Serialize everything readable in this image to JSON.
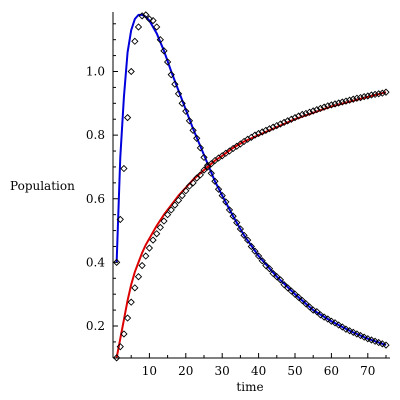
{
  "chart_data": {
    "type": "line",
    "xlabel": "time",
    "ylabel": "Population",
    "xlim": [
      0,
      75
    ],
    "ylim": [
      0.1,
      1.2
    ],
    "xticks": [
      10,
      20,
      30,
      40,
      50,
      60,
      70
    ],
    "yticks": [
      0.2,
      0.4,
      0.6,
      0.8,
      1.0
    ],
    "ytick_labels": [
      "0.2",
      "0.4",
      "0.6",
      "0.8",
      "1.0"
    ],
    "grid": false,
    "series": [
      {
        "color": "#0000dd",
        "line_x": [
          1,
          2,
          3,
          4,
          5,
          6,
          7,
          8,
          9,
          10,
          12,
          14,
          16,
          18,
          20,
          22,
          24,
          26,
          28,
          30,
          33,
          36,
          40,
          45,
          50,
          55,
          60,
          65,
          70,
          75
        ],
        "line_y": [
          0.4,
          0.73,
          0.92,
          1.06,
          1.13,
          1.165,
          1.178,
          1.178,
          1.172,
          1.16,
          1.12,
          1.065,
          1.0,
          0.94,
          0.88,
          0.82,
          0.765,
          0.71,
          0.655,
          0.61,
          0.545,
          0.485,
          0.42,
          0.355,
          0.3,
          0.25,
          0.215,
          0.185,
          0.16,
          0.14
        ],
        "markers_x": [
          1,
          2,
          3,
          4,
          5,
          6,
          7,
          8,
          9,
          10,
          11,
          12,
          13,
          14,
          15,
          16,
          17,
          18,
          19,
          20,
          21,
          22,
          23,
          24,
          25,
          26,
          27,
          28,
          29,
          30,
          31,
          32,
          33,
          34,
          35,
          36,
          37,
          38,
          39,
          40,
          41,
          42,
          43,
          44,
          45,
          46,
          47,
          48,
          49,
          50,
          51,
          52,
          53,
          54,
          55,
          56,
          57,
          58,
          59,
          60,
          61,
          62,
          63,
          64,
          65,
          66,
          67,
          68,
          69,
          70,
          71,
          72,
          73,
          74,
          75
        ],
        "markers_y": [
          0.4,
          0.535,
          0.695,
          0.855,
          1.0,
          1.095,
          1.14,
          1.175,
          1.178,
          1.165,
          1.16,
          1.14,
          1.1,
          1.065,
          1.03,
          0.99,
          0.96,
          0.93,
          0.9,
          0.875,
          0.845,
          0.815,
          0.79,
          0.76,
          0.73,
          0.705,
          0.68,
          0.655,
          0.63,
          0.61,
          0.59,
          0.565,
          0.545,
          0.525,
          0.505,
          0.485,
          0.47,
          0.45,
          0.435,
          0.42,
          0.405,
          0.39,
          0.38,
          0.365,
          0.355,
          0.345,
          0.33,
          0.32,
          0.31,
          0.3,
          0.29,
          0.28,
          0.27,
          0.26,
          0.25,
          0.245,
          0.235,
          0.228,
          0.222,
          0.215,
          0.21,
          0.203,
          0.197,
          0.19,
          0.185,
          0.18,
          0.175,
          0.17,
          0.165,
          0.16,
          0.156,
          0.152,
          0.148,
          0.144,
          0.14
        ]
      },
      {
        "color": "#dd0000",
        "line_x": [
          1,
          2,
          3,
          4,
          5,
          6,
          7,
          8,
          9,
          10,
          12,
          14,
          16,
          18,
          20,
          22,
          24,
          26,
          28,
          30,
          33,
          36,
          40,
          45,
          50,
          55,
          60,
          65,
          70,
          75
        ],
        "line_y": [
          0.1,
          0.16,
          0.22,
          0.28,
          0.33,
          0.37,
          0.4,
          0.43,
          0.455,
          0.475,
          0.515,
          0.55,
          0.58,
          0.61,
          0.635,
          0.66,
          0.68,
          0.7,
          0.72,
          0.735,
          0.76,
          0.78,
          0.8,
          0.825,
          0.85,
          0.87,
          0.89,
          0.905,
          0.92,
          0.935
        ],
        "markers_x": [
          1,
          2,
          3,
          4,
          5,
          6,
          7,
          8,
          9,
          10,
          11,
          12,
          13,
          14,
          15,
          16,
          17,
          18,
          19,
          20,
          21,
          22,
          23,
          24,
          25,
          26,
          27,
          28,
          29,
          30,
          31,
          32,
          33,
          34,
          35,
          36,
          37,
          38,
          39,
          40,
          41,
          42,
          43,
          44,
          45,
          46,
          47,
          48,
          49,
          50,
          51,
          52,
          53,
          54,
          55,
          56,
          57,
          58,
          59,
          60,
          61,
          62,
          63,
          64,
          65,
          66,
          67,
          68,
          69,
          70,
          71,
          72,
          73,
          74,
          75
        ],
        "markers_y": [
          0.1,
          0.135,
          0.175,
          0.225,
          0.275,
          0.32,
          0.355,
          0.39,
          0.42,
          0.445,
          0.47,
          0.49,
          0.51,
          0.53,
          0.55,
          0.565,
          0.58,
          0.595,
          0.61,
          0.625,
          0.64,
          0.65,
          0.665,
          0.675,
          0.69,
          0.7,
          0.71,
          0.72,
          0.728,
          0.735,
          0.743,
          0.75,
          0.758,
          0.765,
          0.772,
          0.78,
          0.787,
          0.793,
          0.8,
          0.805,
          0.81,
          0.815,
          0.82,
          0.825,
          0.83,
          0.835,
          0.84,
          0.845,
          0.85,
          0.855,
          0.86,
          0.865,
          0.868,
          0.872,
          0.876,
          0.88,
          0.884,
          0.888,
          0.892,
          0.895,
          0.898,
          0.901,
          0.904,
          0.907,
          0.91,
          0.913,
          0.916,
          0.918,
          0.921,
          0.923,
          0.926,
          0.928,
          0.93,
          0.932,
          0.935
        ]
      }
    ]
  }
}
